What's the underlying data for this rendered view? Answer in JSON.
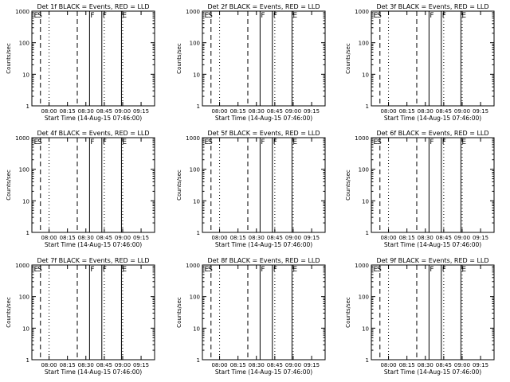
{
  "figure": {
    "xlabel": "Start Time (14-Aug-15 07:46:00)",
    "ylabel": "Counts/sec"
  },
  "chart_data": [
    {
      "type": "line",
      "title": "Det 1f BLACK = Events, RED = LLD",
      "xlabel": "Start Time (14-Aug-15 07:46:00)",
      "ylabel": "Counts/sec",
      "x_tick_labels": [
        "08:00",
        "08:15",
        "08:30",
        "08:45",
        "09:00",
        "09:15"
      ],
      "y_tick_labels": [
        "1",
        "10",
        "100",
        "1000"
      ],
      "yscale": "log",
      "ylim": [
        1,
        1000
      ],
      "xlim": [
        "07:46",
        "09:26"
      ],
      "colors": {
        "events": "#000000",
        "lld": "#cc0000"
      },
      "flag_labels": [
        "E",
        "S",
        "F",
        "F",
        "E"
      ],
      "flag_times": [
        "07:47",
        "07:50",
        "08:33",
        "08:43",
        "08:59"
      ],
      "dashed_times": [
        "07:53",
        "08:23"
      ],
      "dotted_times": [
        "08:00",
        "08:45",
        "09:00"
      ],
      "series": [
        {
          "name": "BLACK = Events",
          "color": "#000000",
          "x": [],
          "y": []
        },
        {
          "name": "RED = LLD",
          "color": "#cc0000",
          "x": [],
          "y": []
        }
      ]
    },
    {
      "type": "line",
      "title": "Det 2f BLACK = Events, RED = LLD",
      "xlabel": "Start Time (14-Aug-15 07:46:00)",
      "ylabel": "Counts/sec",
      "x_tick_labels": [
        "08:00",
        "08:15",
        "08:30",
        "08:45",
        "09:00",
        "09:15"
      ],
      "y_tick_labels": [
        "1",
        "10",
        "100",
        "1000"
      ],
      "yscale": "log",
      "ylim": [
        1,
        1000
      ],
      "xlim": [
        "07:46",
        "09:26"
      ],
      "colors": {
        "events": "#000000",
        "lld": "#cc0000"
      },
      "flag_labels": [
        "E",
        "S",
        "F",
        "F",
        "E"
      ],
      "flag_times": [
        "07:47",
        "07:50",
        "08:33",
        "08:43",
        "08:59"
      ],
      "dashed_times": [
        "07:53",
        "08:23"
      ],
      "dotted_times": [
        "08:00",
        "08:45",
        "09:00"
      ],
      "series": [
        {
          "name": "BLACK = Events",
          "color": "#000000",
          "x": [],
          "y": []
        },
        {
          "name": "RED = LLD",
          "color": "#cc0000",
          "x": [],
          "y": []
        }
      ]
    },
    {
      "type": "line",
      "title": "Det 3f BLACK = Events, RED = LLD",
      "xlabel": "Start Time (14-Aug-15 07:46:00)",
      "ylabel": "Counts/sec",
      "x_tick_labels": [
        "08:00",
        "08:15",
        "08:30",
        "08:45",
        "09:00",
        "09:15"
      ],
      "y_tick_labels": [
        "1",
        "10",
        "100",
        "1000"
      ],
      "yscale": "log",
      "ylim": [
        1,
        1000
      ],
      "xlim": [
        "07:46",
        "09:26"
      ],
      "colors": {
        "events": "#000000",
        "lld": "#cc0000"
      },
      "flag_labels": [
        "E",
        "S",
        "F",
        "F",
        "E"
      ],
      "flag_times": [
        "07:47",
        "07:50",
        "08:33",
        "08:43",
        "08:59"
      ],
      "dashed_times": [
        "07:53",
        "08:23"
      ],
      "dotted_times": [
        "08:00",
        "08:45",
        "09:00"
      ],
      "series": [
        {
          "name": "BLACK = Events",
          "color": "#000000",
          "x": [],
          "y": []
        },
        {
          "name": "RED = LLD",
          "color": "#cc0000",
          "x": [],
          "y": []
        }
      ]
    },
    {
      "type": "line",
      "title": "Det 4f BLACK = Events, RED = LLD",
      "xlabel": "Start Time (14-Aug-15 07:46:00)",
      "ylabel": "Counts/sec",
      "x_tick_labels": [
        "08:00",
        "08:15",
        "08:30",
        "08:45",
        "09:00",
        "09:15"
      ],
      "y_tick_labels": [
        "1",
        "10",
        "100",
        "1000"
      ],
      "yscale": "log",
      "ylim": [
        1,
        1000
      ],
      "xlim": [
        "07:46",
        "09:26"
      ],
      "colors": {
        "events": "#000000",
        "lld": "#cc0000"
      },
      "flag_labels": [
        "E",
        "S",
        "F",
        "F",
        "E"
      ],
      "flag_times": [
        "07:47",
        "07:50",
        "08:33",
        "08:43",
        "08:59"
      ],
      "dashed_times": [
        "07:53",
        "08:23"
      ],
      "dotted_times": [
        "08:00",
        "08:45",
        "09:00"
      ],
      "series": [
        {
          "name": "BLACK = Events",
          "color": "#000000",
          "x": [],
          "y": []
        },
        {
          "name": "RED = LLD",
          "color": "#cc0000",
          "x": [],
          "y": []
        }
      ]
    },
    {
      "type": "line",
      "title": "Det 5f BLACK = Events, RED = LLD",
      "xlabel": "Start Time (14-Aug-15 07:46:00)",
      "ylabel": "Counts/sec",
      "x_tick_labels": [
        "08:00",
        "08:15",
        "08:30",
        "08:45",
        "09:00",
        "09:15"
      ],
      "y_tick_labels": [
        "1",
        "10",
        "100",
        "1000"
      ],
      "yscale": "log",
      "ylim": [
        1,
        1000
      ],
      "xlim": [
        "07:46",
        "09:26"
      ],
      "colors": {
        "events": "#000000",
        "lld": "#cc0000"
      },
      "flag_labels": [
        "E",
        "S",
        "F",
        "F",
        "E"
      ],
      "flag_times": [
        "07:47",
        "07:50",
        "08:33",
        "08:43",
        "08:59"
      ],
      "dashed_times": [
        "07:53",
        "08:23"
      ],
      "dotted_times": [
        "08:00",
        "08:45",
        "09:00"
      ],
      "series": [
        {
          "name": "BLACK = Events",
          "color": "#000000",
          "x": [],
          "y": []
        },
        {
          "name": "RED = LLD",
          "color": "#cc0000",
          "x": [],
          "y": []
        }
      ]
    },
    {
      "type": "line",
      "title": "Det 6f BLACK = Events, RED = LLD",
      "xlabel": "Start Time (14-Aug-15 07:46:00)",
      "ylabel": "Counts/sec",
      "x_tick_labels": [
        "08:00",
        "08:15",
        "08:30",
        "08:45",
        "09:00",
        "09:15"
      ],
      "y_tick_labels": [
        "1",
        "10",
        "100",
        "1000"
      ],
      "yscale": "log",
      "ylim": [
        1,
        1000
      ],
      "xlim": [
        "07:46",
        "09:26"
      ],
      "colors": {
        "events": "#000000",
        "lld": "#cc0000"
      },
      "flag_labels": [
        "E",
        "S",
        "F",
        "F",
        "E"
      ],
      "flag_times": [
        "07:47",
        "07:50",
        "08:33",
        "08:43",
        "08:59"
      ],
      "dashed_times": [
        "07:53",
        "08:23"
      ],
      "dotted_times": [
        "08:00",
        "08:45",
        "09:00"
      ],
      "series": [
        {
          "name": "BLACK = Events",
          "color": "#000000",
          "x": [],
          "y": []
        },
        {
          "name": "RED = LLD",
          "color": "#cc0000",
          "x": [],
          "y": []
        }
      ]
    },
    {
      "type": "line",
      "title": "Det 7f BLACK = Events, RED = LLD",
      "xlabel": "Start Time (14-Aug-15 07:46:00)",
      "ylabel": "Counts/sec",
      "x_tick_labels": [
        "08:00",
        "08:15",
        "08:30",
        "08:45",
        "09:00",
        "09:15"
      ],
      "y_tick_labels": [
        "1",
        "10",
        "100",
        "1000"
      ],
      "yscale": "log",
      "ylim": [
        1,
        1000
      ],
      "xlim": [
        "07:46",
        "09:26"
      ],
      "colors": {
        "events": "#000000",
        "lld": "#cc0000"
      },
      "flag_labels": [
        "E",
        "S",
        "F",
        "F",
        "E"
      ],
      "flag_times": [
        "07:47",
        "07:50",
        "08:33",
        "08:43",
        "08:59"
      ],
      "dashed_times": [
        "07:53",
        "08:23"
      ],
      "dotted_times": [
        "08:00",
        "08:45",
        "09:00"
      ],
      "series": [
        {
          "name": "BLACK = Events",
          "color": "#000000",
          "x": [],
          "y": []
        },
        {
          "name": "RED = LLD",
          "color": "#cc0000",
          "x": [],
          "y": []
        }
      ]
    },
    {
      "type": "line",
      "title": "Det 8f BLACK = Events, RED = LLD",
      "xlabel": "Start Time (14-Aug-15 07:46:00)",
      "ylabel": "Counts/sec",
      "x_tick_labels": [
        "08:00",
        "08:15",
        "08:30",
        "08:45",
        "09:00",
        "09:15"
      ],
      "y_tick_labels": [
        "1",
        "10",
        "100",
        "1000"
      ],
      "yscale": "log",
      "ylim": [
        1,
        1000
      ],
      "xlim": [
        "07:46",
        "09:26"
      ],
      "colors": {
        "events": "#000000",
        "lld": "#cc0000"
      },
      "flag_labels": [
        "E",
        "S",
        "F",
        "F",
        "E"
      ],
      "flag_times": [
        "07:47",
        "07:50",
        "08:33",
        "08:43",
        "08:59"
      ],
      "dashed_times": [
        "07:53",
        "08:23"
      ],
      "dotted_times": [
        "08:00",
        "08:45",
        "09:00"
      ],
      "series": [
        {
          "name": "BLACK = Events",
          "color": "#000000",
          "x": [],
          "y": []
        },
        {
          "name": "RED = LLD",
          "color": "#cc0000",
          "x": [],
          "y": []
        }
      ]
    },
    {
      "type": "line",
      "title": "Det 9f BLACK = Events, RED = LLD",
      "xlabel": "Start Time (14-Aug-15 07:46:00)",
      "ylabel": "Counts/sec",
      "x_tick_labels": [
        "08:00",
        "08:15",
        "08:30",
        "08:45",
        "09:00",
        "09:15"
      ],
      "y_tick_labels": [
        "1",
        "10",
        "100",
        "1000"
      ],
      "yscale": "log",
      "ylim": [
        1,
        1000
      ],
      "xlim": [
        "07:46",
        "09:26"
      ],
      "colors": {
        "events": "#000000",
        "lld": "#cc0000"
      },
      "flag_labels": [
        "E",
        "S",
        "F",
        "F",
        "E"
      ],
      "flag_times": [
        "07:47",
        "07:50",
        "08:33",
        "08:43",
        "08:59"
      ],
      "dashed_times": [
        "07:53",
        "08:23"
      ],
      "dotted_times": [
        "08:00",
        "08:45",
        "09:00"
      ],
      "series": [
        {
          "name": "BLACK = Events",
          "color": "#000000",
          "x": [],
          "y": []
        },
        {
          "name": "RED = LLD",
          "color": "#cc0000",
          "x": [],
          "y": []
        }
      ]
    }
  ]
}
